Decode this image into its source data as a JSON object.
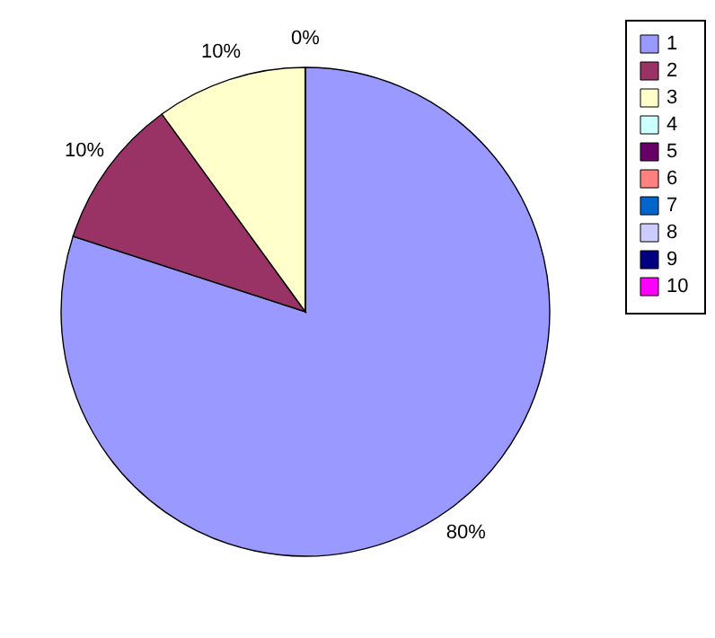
{
  "chart_data": {
    "type": "pie",
    "categories": [
      "1",
      "2",
      "3",
      "4",
      "5",
      "6",
      "7",
      "8",
      "9",
      "10"
    ],
    "values": [
      80,
      10,
      10,
      0,
      0,
      0,
      0,
      0,
      0,
      0
    ],
    "value_labels": [
      "80%",
      "10%",
      "10%",
      "0%",
      null,
      null,
      null,
      null,
      null,
      null
    ],
    "colors": [
      "#9999ff",
      "#993366",
      "#ffffcc",
      "#ccffff",
      "#660066",
      "#ff8080",
      "#0066cc",
      "#ccccff",
      "#000080",
      "#ff00ff"
    ],
    "legend": "right"
  }
}
